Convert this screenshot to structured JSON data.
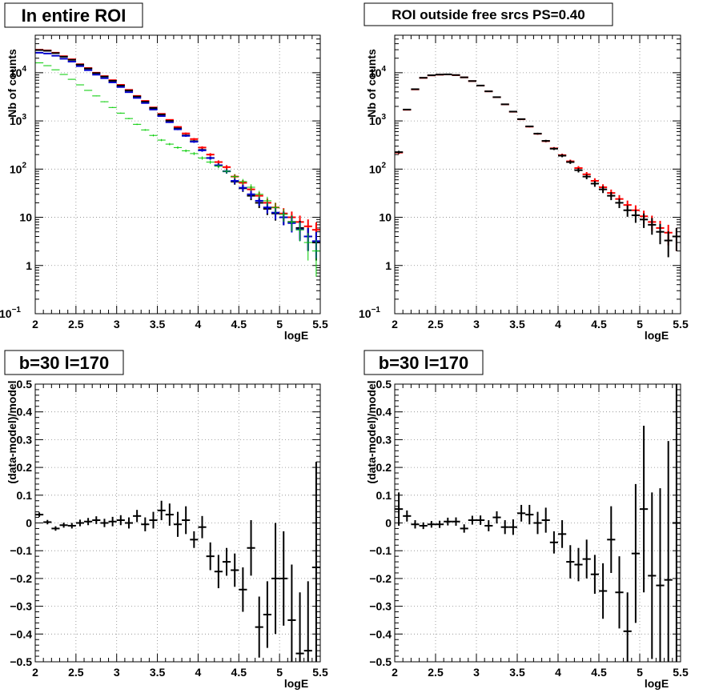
{
  "figure": {
    "panels": [
      {
        "title": "In entire ROI",
        "xlabel": "logE",
        "ylabel": "Nb of counts",
        "xlim": [
          2,
          5.5
        ],
        "ylim": [
          0.1,
          60000
        ],
        "yscale": "log",
        "x_ticks": [
          "2",
          "2.5",
          "3",
          "3.5",
          "4",
          "4.5",
          "5",
          "5.5"
        ],
        "y_ticks": [
          {
            "label": "1",
            "sup": "",
            "value": 1
          },
          {
            "label": "10",
            "sup": "",
            "value": 10
          },
          {
            "label": "10",
            "sup": "2",
            "value": 100
          },
          {
            "label": "10",
            "sup": "3",
            "value": 1000
          },
          {
            "label": "10",
            "sup": "4",
            "value": 10000
          },
          {
            "label": "10",
            "sup": "-1",
            "value": 0.1
          }
        ]
      },
      {
        "title": "ROI outside free srcs PS=0.40",
        "xlabel": "logE",
        "ylabel": "Nb of counts",
        "xlim": [
          2,
          5.5
        ],
        "ylim": [
          0.1,
          60000
        ],
        "yscale": "log",
        "x_ticks": [
          "2",
          "2.5",
          "3",
          "3.5",
          "4",
          "4.5",
          "5",
          "5.5"
        ],
        "y_ticks": [
          {
            "label": "1",
            "sup": "",
            "value": 1
          },
          {
            "label": "10",
            "sup": "",
            "value": 10
          },
          {
            "label": "10",
            "sup": "2",
            "value": 100
          },
          {
            "label": "10",
            "sup": "3",
            "value": 1000
          },
          {
            "label": "10",
            "sup": "4",
            "value": 10000
          },
          {
            "label": "10",
            "sup": "-1",
            "value": 0.1
          }
        ]
      },
      {
        "title": "b=30 l=170",
        "xlabel": "logE",
        "ylabel": "(data-model)/model",
        "xlim": [
          2,
          5.5
        ],
        "ylim": [
          -0.5,
          0.5
        ],
        "yscale": "linear",
        "x_ticks": [
          "2",
          "2.5",
          "3",
          "3.5",
          "4",
          "4.5",
          "5",
          "5.5"
        ],
        "y_ticks": [
          {
            "label": "-0.5",
            "value": -0.5
          },
          {
            "label": "-0.4",
            "value": -0.4
          },
          {
            "label": "-0.3",
            "value": -0.3
          },
          {
            "label": "-0.2",
            "value": -0.2
          },
          {
            "label": "-0.1",
            "value": -0.1
          },
          {
            "label": "0",
            "value": 0
          },
          {
            "label": "0.1",
            "value": 0.1
          },
          {
            "label": "0.2",
            "value": 0.2
          },
          {
            "label": "0.3",
            "value": 0.3
          },
          {
            "label": "0.4",
            "value": 0.4
          },
          {
            "label": "0.5",
            "value": 0.5
          }
        ]
      },
      {
        "title": "b=30 l=170",
        "xlabel": "logE",
        "ylabel": "(data-model)/model",
        "xlim": [
          2,
          5.5
        ],
        "ylim": [
          -0.5,
          0.5
        ],
        "yscale": "linear",
        "x_ticks": [
          "2",
          "2.5",
          "3",
          "3.5",
          "4",
          "4.5",
          "5",
          "5.5"
        ],
        "y_ticks": [
          {
            "label": "-0.5",
            "value": -0.5
          },
          {
            "label": "-0.4",
            "value": -0.4
          },
          {
            "label": "-0.3",
            "value": -0.3
          },
          {
            "label": "-0.2",
            "value": -0.2
          },
          {
            "label": "-0.1",
            "value": -0.1
          },
          {
            "label": "0",
            "value": 0
          },
          {
            "label": "0.1",
            "value": 0.1
          },
          {
            "label": "0.2",
            "value": 0.2
          },
          {
            "label": "0.3",
            "value": 0.3
          },
          {
            "label": "0.4",
            "value": 0.4
          },
          {
            "label": "0.5",
            "value": 0.5
          }
        ]
      }
    ]
  },
  "chart_data": [
    {
      "type": "scatter",
      "title": "In entire ROI",
      "xlabel": "logE",
      "ylabel": "Nb of counts",
      "xscale": "linear",
      "yscale": "log",
      "xlim": [
        2,
        5.5
      ],
      "ylim": [
        0.1,
        60000
      ],
      "grid": true,
      "bin_width": 0.1,
      "x": [
        2.05,
        2.15,
        2.25,
        2.35,
        2.45,
        2.55,
        2.65,
        2.75,
        2.85,
        2.95,
        3.05,
        3.15,
        3.25,
        3.35,
        3.45,
        3.55,
        3.65,
        3.75,
        3.85,
        3.95,
        4.05,
        4.15,
        4.25,
        4.35,
        4.45,
        4.55,
        4.65,
        4.75,
        4.85,
        4.95,
        5.05,
        5.15,
        5.25,
        5.35,
        5.45
      ],
      "series": [
        {
          "color": "#ff0000",
          "values": [
            30000,
            29000,
            26000,
            22000,
            19000,
            15000,
            12500,
            10000,
            8500,
            7000,
            5600,
            4400,
            3300,
            2600,
            1900,
            1400,
            1050,
            750,
            550,
            420,
            280,
            200,
            140,
            110,
            70,
            52,
            38,
            28,
            20,
            16,
            12,
            10,
            8,
            6.5,
            5.5
          ]
        },
        {
          "color": "#000000",
          "values": [
            29500,
            28500,
            25500,
            21500,
            18500,
            14700,
            12200,
            9800,
            8300,
            6800,
            5400,
            4250,
            3200,
            2500,
            1850,
            1350,
            1000,
            700,
            500,
            380,
            250,
            170,
            120,
            90,
            55,
            40,
            28,
            20,
            15,
            12,
            10,
            8,
            6,
            4,
            3
          ]
        },
        {
          "color": "#0000cc",
          "values": [
            26000,
            25000,
            22500,
            19500,
            17000,
            13700,
            11300,
            9100,
            7700,
            6300,
            5050,
            3950,
            3000,
            2350,
            1720,
            1260,
            940,
            670,
            490,
            370,
            245,
            170,
            120,
            90,
            57,
            41,
            30,
            22,
            16,
            12.5,
            10,
            7.6,
            5.6,
            4,
            3.2
          ]
        },
        {
          "color": "#00cc00",
          "values": [
            16000,
            14000,
            11500,
            9200,
            7300,
            5600,
            4300,
            3300,
            2500,
            1900,
            1450,
            1120,
            850,
            650,
            500,
            400,
            330,
            280,
            240,
            210,
            170,
            140,
            115,
            90,
            70,
            55,
            42,
            30,
            22,
            16,
            11.5,
            8,
            5.5,
            3,
            2
          ]
        }
      ]
    },
    {
      "type": "scatter",
      "title": "ROI outside free srcs PS=0.40",
      "xlabel": "logE",
      "ylabel": "Nb of counts",
      "xscale": "linear",
      "yscale": "log",
      "xlim": [
        2,
        5.5
      ],
      "ylim": [
        0.1,
        60000
      ],
      "grid": true,
      "bin_width": 0.1,
      "x": [
        2.05,
        2.15,
        2.25,
        2.35,
        2.45,
        2.55,
        2.65,
        2.75,
        2.85,
        2.95,
        3.05,
        3.15,
        3.25,
        3.35,
        3.45,
        3.55,
        3.65,
        3.75,
        3.85,
        3.95,
        4.05,
        4.15,
        4.25,
        4.35,
        4.45,
        4.55,
        4.65,
        4.75,
        4.85,
        4.95,
        5.05,
        5.15,
        5.25,
        5.35,
        5.45
      ],
      "series": [
        {
          "color": "#ff0000",
          "values": [
            220,
            1700,
            4500,
            7800,
            8800,
            9100,
            9200,
            8900,
            8000,
            6700,
            5400,
            4100,
            3100,
            2200,
            1550,
            1080,
            760,
            540,
            380,
            270,
            195,
            145,
            105,
            78,
            57,
            42,
            32,
            24,
            18,
            14,
            10.5,
            8,
            6,
            4.8,
            4
          ]
        },
        {
          "color": "#000000",
          "values": [
            225,
            1720,
            4550,
            7850,
            8850,
            9150,
            9250,
            8950,
            8020,
            6720,
            5420,
            4110,
            3110,
            2210,
            1560,
            1090,
            770,
            545,
            385,
            265,
            190,
            140,
            95,
            70,
            50,
            38,
            28,
            20,
            14,
            11,
            9,
            7,
            5,
            3.3,
            4
          ]
        }
      ]
    },
    {
      "type": "scatter",
      "title": "b=30 l=170",
      "xlabel": "logE",
      "ylabel": "(data-model)/model",
      "xscale": "linear",
      "yscale": "linear",
      "xlim": [
        2,
        5.5
      ],
      "ylim": [
        -0.5,
        0.5
      ],
      "grid": true,
      "bin_width": 0.1,
      "x": [
        2.05,
        2.15,
        2.25,
        2.35,
        2.45,
        2.55,
        2.65,
        2.75,
        2.85,
        2.95,
        3.05,
        3.15,
        3.25,
        3.35,
        3.45,
        3.55,
        3.65,
        3.75,
        3.85,
        3.95,
        4.05,
        4.15,
        4.25,
        4.35,
        4.45,
        4.55,
        4.65,
        4.75,
        4.85,
        4.95,
        5.05,
        5.15,
        5.25,
        5.35,
        5.45
      ],
      "series": [
        {
          "color": "#000000",
          "values": [
            0.03,
            0.003,
            -0.02,
            -0.008,
            -0.01,
            0.0,
            0.005,
            0.01,
            0.0,
            0.005,
            0.01,
            0.0,
            0.025,
            -0.005,
            0.01,
            0.045,
            0.03,
            -0.005,
            0.01,
            -0.06,
            -0.015,
            -0.12,
            -0.175,
            -0.14,
            -0.17,
            -0.24,
            -0.09,
            -0.375,
            -0.33,
            -0.2,
            -0.2,
            -0.35,
            -0.47,
            -0.46,
            -0.16
          ],
          "errors": [
            0.008,
            0.008,
            0.008,
            0.009,
            0.01,
            0.012,
            0.013,
            0.014,
            0.015,
            0.017,
            0.018,
            0.02,
            0.022,
            0.025,
            0.03,
            0.035,
            0.04,
            0.045,
            0.05,
            0.03,
            0.04,
            0.05,
            0.06,
            0.05,
            0.06,
            0.08,
            0.1,
            0.11,
            0.12,
            0.2,
            0.17,
            0.2,
            0.22,
            0.25,
            0.38
          ]
        }
      ]
    },
    {
      "type": "scatter",
      "title": "b=30 l=170",
      "xlabel": "logE",
      "ylabel": "(data-model)/model",
      "xscale": "linear",
      "yscale": "linear",
      "xlim": [
        2,
        5.5
      ],
      "ylim": [
        -0.5,
        0.5
      ],
      "grid": true,
      "bin_width": 0.1,
      "x": [
        2.05,
        2.15,
        2.25,
        2.35,
        2.45,
        2.55,
        2.65,
        2.75,
        2.85,
        2.95,
        3.05,
        3.15,
        3.25,
        3.35,
        3.45,
        3.55,
        3.65,
        3.75,
        3.85,
        3.95,
        4.05,
        4.15,
        4.25,
        4.35,
        4.45,
        4.55,
        4.65,
        4.75,
        4.85,
        4.95,
        5.05,
        5.15,
        5.25,
        5.35,
        5.45
      ],
      "series": [
        {
          "color": "#000000",
          "values": [
            0.05,
            0.025,
            -0.005,
            -0.01,
            -0.005,
            -0.005,
            0.005,
            0.005,
            -0.02,
            0.01,
            0.01,
            -0.01,
            0.02,
            -0.015,
            -0.015,
            0.035,
            0.03,
            0.0,
            0.01,
            -0.07,
            -0.04,
            -0.14,
            -0.15,
            -0.13,
            -0.185,
            -0.245,
            -0.06,
            -0.25,
            -0.39,
            -0.11,
            0.05,
            -0.19,
            -0.225,
            -0.205,
            0.0
          ],
          "errors": [
            0.06,
            0.02,
            0.015,
            0.012,
            0.012,
            0.013,
            0.014,
            0.015,
            0.015,
            0.016,
            0.017,
            0.02,
            0.022,
            0.025,
            0.028,
            0.03,
            0.035,
            0.04,
            0.045,
            0.04,
            0.05,
            0.06,
            0.06,
            0.07,
            0.07,
            0.1,
            0.12,
            0.13,
            0.14,
            0.25,
            0.3,
            0.3,
            0.35,
            0.5,
            0.55
          ]
        }
      ]
    }
  ]
}
